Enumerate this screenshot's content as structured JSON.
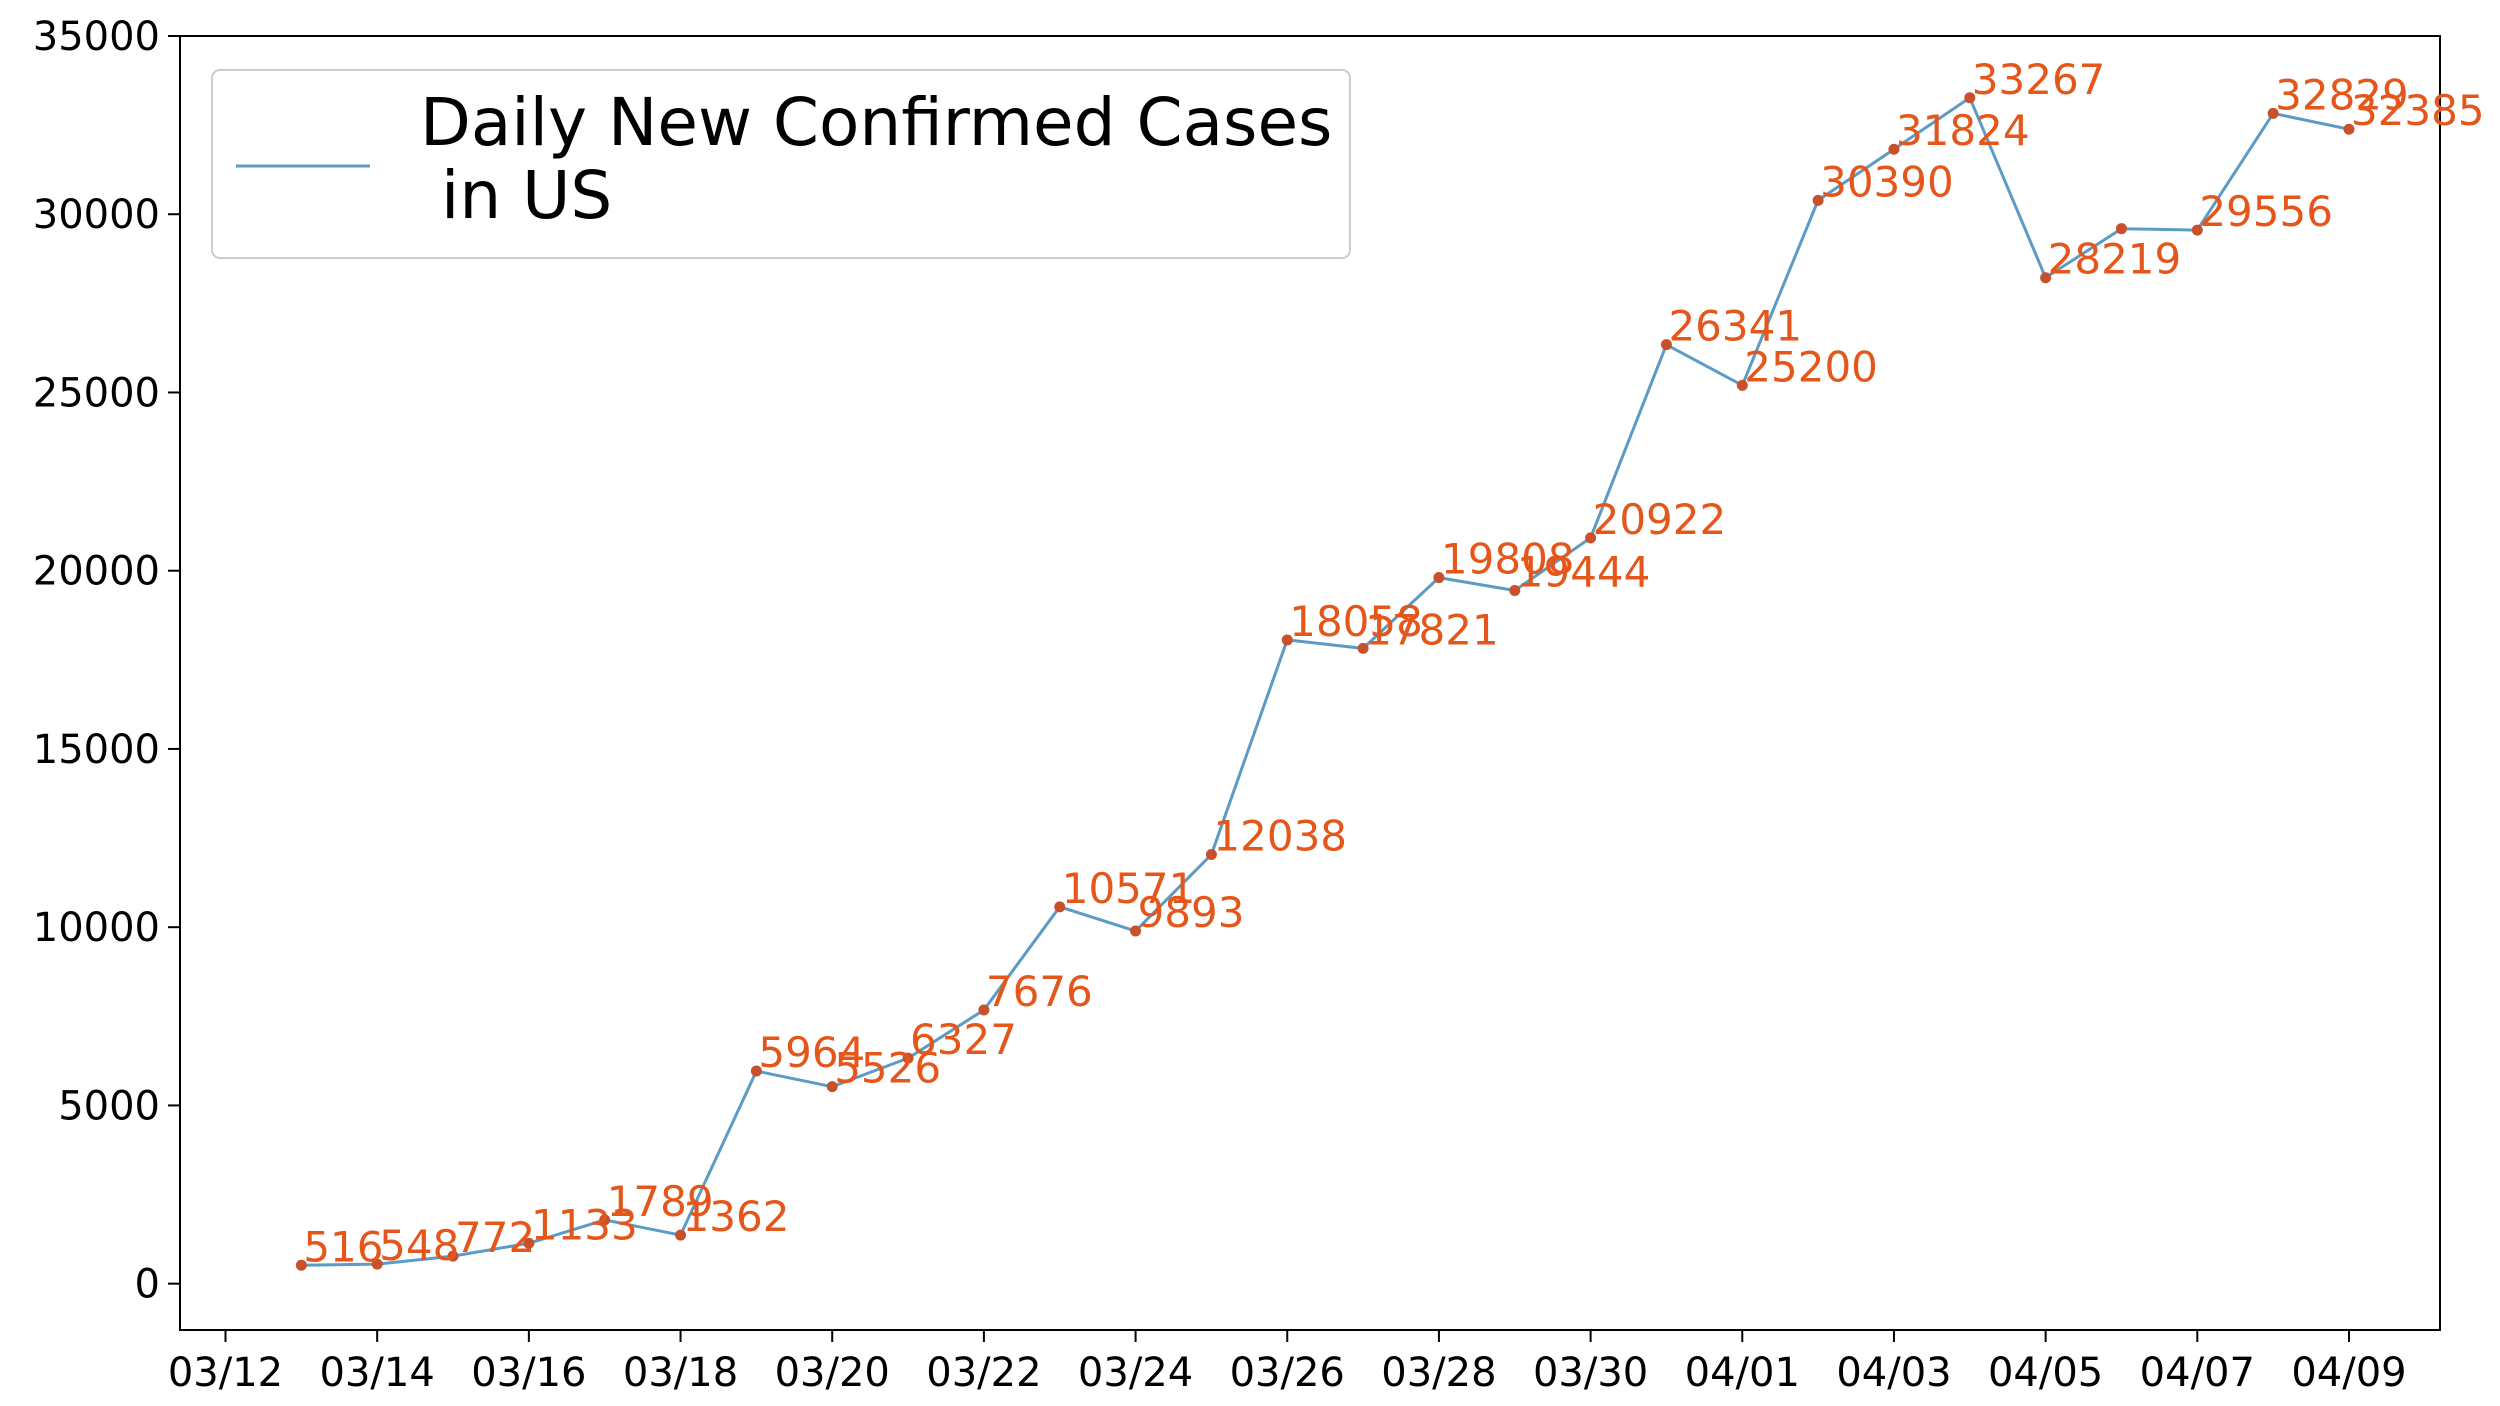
{
  "chart_data": {
    "type": "line",
    "title": "",
    "xlabel": "",
    "ylabel": "",
    "x": [
      "03/13",
      "03/14",
      "03/15",
      "03/16",
      "03/17",
      "03/18",
      "03/19",
      "03/20",
      "03/21",
      "03/22",
      "03/23",
      "03/24",
      "03/25",
      "03/26",
      "03/27",
      "03/28",
      "03/29",
      "03/30",
      "03/31",
      "04/01",
      "04/02",
      "04/03",
      "04/04",
      "04/05",
      "04/06",
      "04/07",
      "04/08",
      "04/09"
    ],
    "series": [
      {
        "name_lines": [
          "Daily New Confirmed Cases",
          " in US"
        ],
        "values": [
          516,
          548,
          772,
          1133,
          1789,
          1362,
          5964,
          5526,
          6327,
          7676,
          10571,
          9893,
          12038,
          18058,
          17821,
          19808,
          19444,
          20922,
          26341,
          25200,
          30390,
          31824,
          33267,
          28219,
          29595,
          29556,
          32829,
          32385
        ],
        "labels": [
          "516",
          "548",
          "772",
          "1133",
          "1789",
          "1362",
          "5964",
          "5526",
          "6327",
          "7676",
          "10571",
          "9893",
          "12038",
          "18058",
          "17821",
          "19808",
          "19444",
          "20922",
          "26341",
          "25200",
          "30390",
          "31824",
          "33267",
          "28219",
          "",
          "29556",
          "32829",
          "32385"
        ]
      }
    ],
    "xticks": [
      "03/12",
      "03/14",
      "03/16",
      "03/18",
      "03/20",
      "03/22",
      "03/24",
      "03/26",
      "03/28",
      "03/30",
      "04/01",
      "04/03",
      "04/05",
      "04/07",
      "04/09"
    ],
    "yticks": [
      0,
      5000,
      10000,
      15000,
      20000,
      25000,
      30000,
      35000
    ],
    "ylim": [
      -1300,
      35000
    ],
    "xlim_days_from_0312": [
      -0.6,
      29.2
    ],
    "grid": false,
    "legend_position": "top-left",
    "line_color": "#5b9bc4",
    "marker_color": "#c8502a",
    "label_color": "#e4561a"
  }
}
